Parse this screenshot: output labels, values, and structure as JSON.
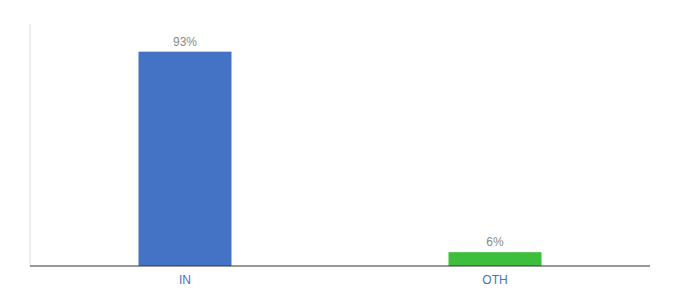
{
  "chart_data": {
    "type": "bar",
    "categories": [
      "IN",
      "OTH"
    ],
    "values": [
      93,
      6
    ],
    "value_labels": [
      "93%",
      "6%"
    ],
    "colors": [
      "#4472c4",
      "#3dbf3d"
    ],
    "ylim": [
      0,
      105
    ],
    "grid": false,
    "data_labels": true,
    "tick_labels": "x"
  }
}
